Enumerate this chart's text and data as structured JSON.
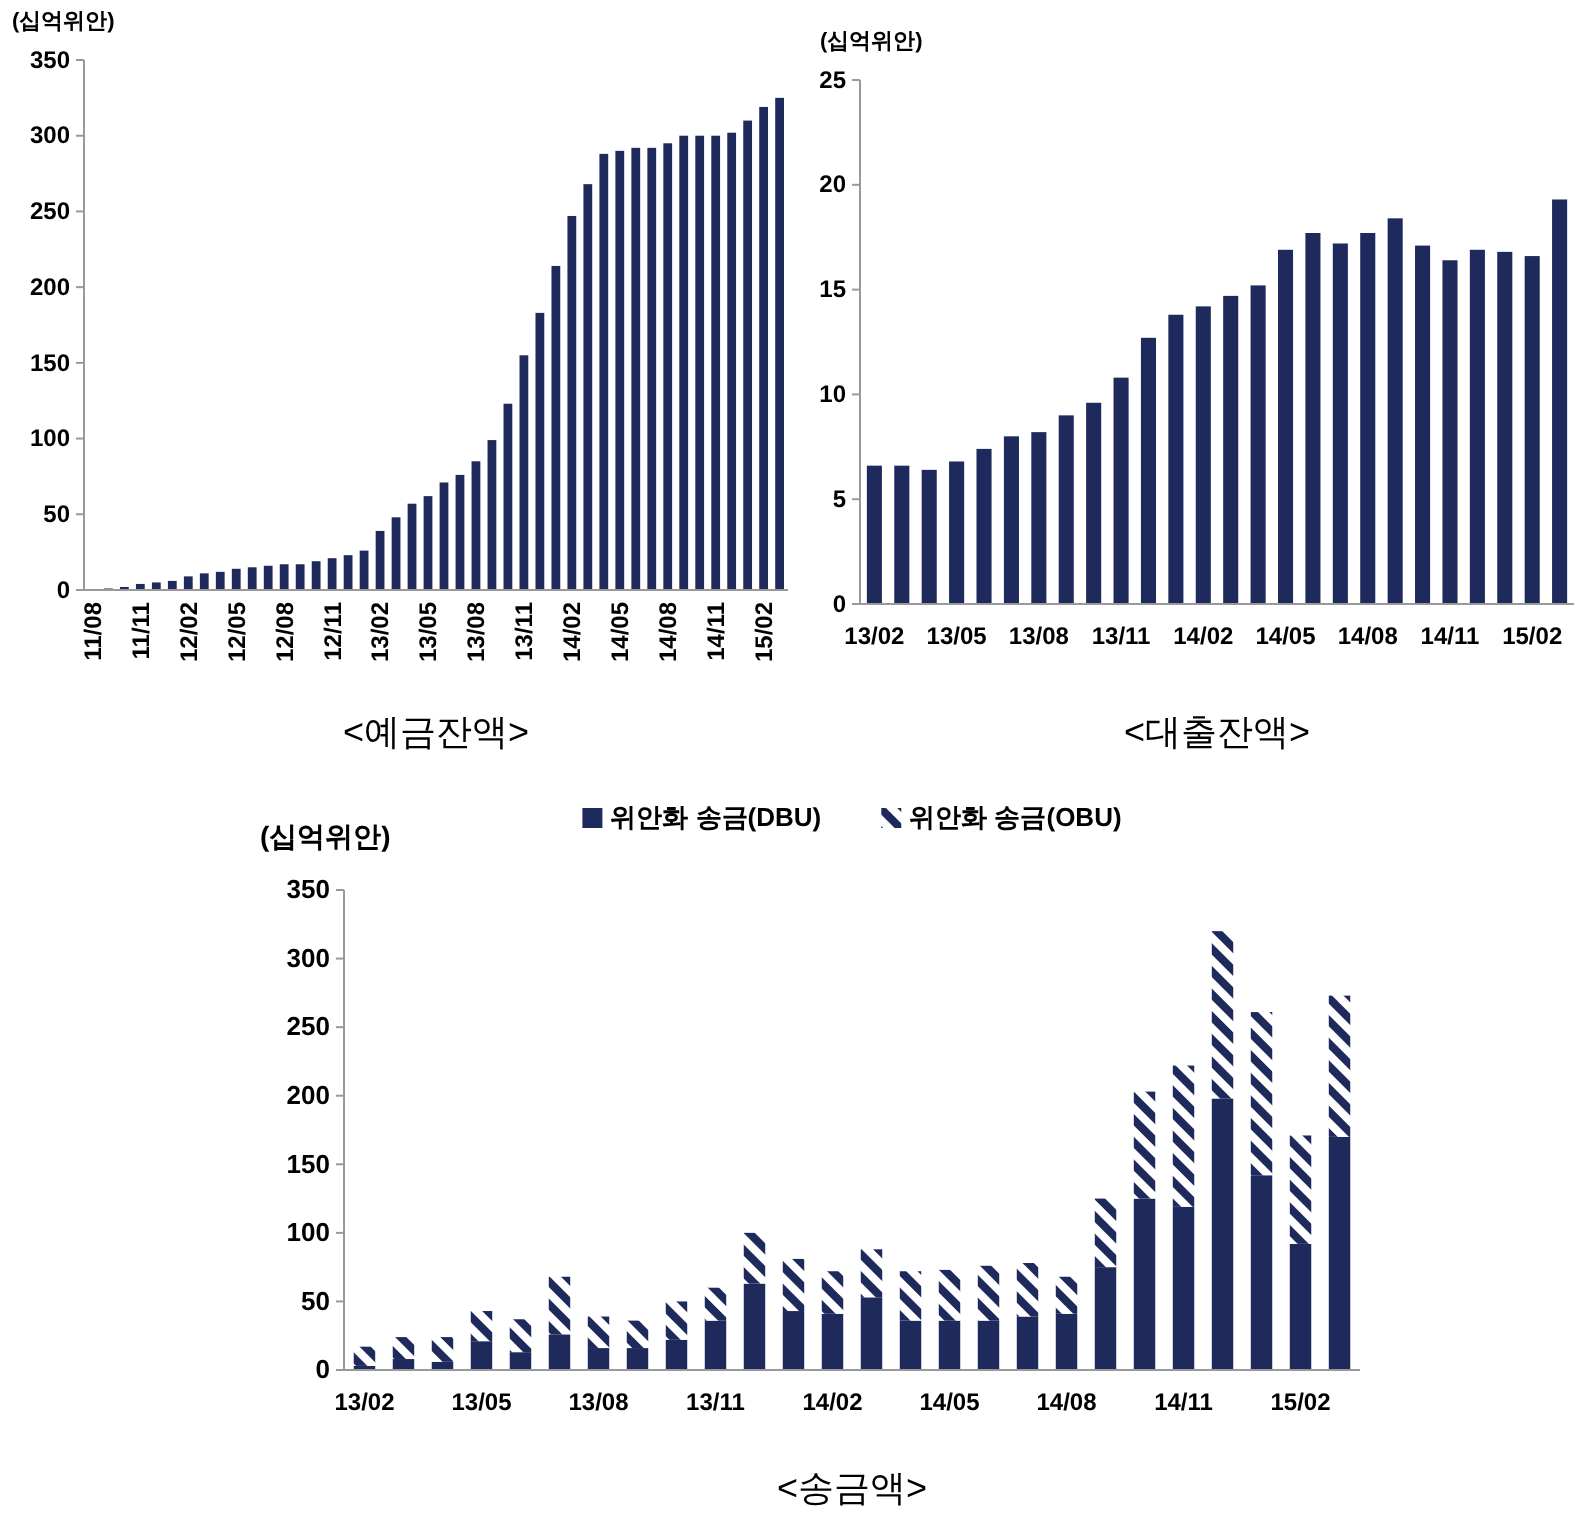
{
  "chart_data": [
    {
      "type": "bar",
      "title": "<예금잔액>",
      "ylabel": "(십억위안)",
      "categories": [
        "11/08",
        null,
        null,
        "11/11",
        null,
        null,
        "12/02",
        null,
        null,
        "12/05",
        null,
        null,
        "12/08",
        null,
        null,
        "12/11",
        null,
        null,
        "13/02",
        null,
        null,
        "13/05",
        null,
        null,
        "13/08",
        null,
        null,
        "13/11",
        null,
        null,
        "14/02",
        null,
        null,
        "14/05",
        null,
        null,
        "14/08",
        null,
        null,
        "14/11",
        null,
        null,
        "15/02",
        null
      ],
      "series": [
        {
          "color": "#1f2a5c",
          "values": [
            0,
            1,
            2,
            4,
            5,
            6,
            9,
            11,
            12,
            14,
            15,
            16,
            17,
            17,
            19,
            21,
            23,
            26,
            39,
            48,
            57,
            62,
            71,
            76,
            85,
            99,
            123,
            155,
            183,
            214,
            247,
            268,
            288,
            290,
            292,
            292,
            295,
            300,
            300,
            300,
            302,
            310,
            319,
            325
          ]
        }
      ],
      "ylim": [
        0,
        350
      ],
      "yticks": [
        0,
        50,
        100,
        150,
        200,
        250,
        300,
        350
      ],
      "grid": false,
      "legend": false
    },
    {
      "type": "bar",
      "title": "<대출잔액>",
      "ylabel": "(십억위안)",
      "categories": [
        "13/02",
        null,
        null,
        "13/05",
        null,
        null,
        "13/08",
        null,
        null,
        "13/11",
        null,
        null,
        "14/02",
        null,
        null,
        "14/05",
        null,
        null,
        "14/08",
        null,
        null,
        "14/11",
        null,
        null,
        "15/02",
        null
      ],
      "series": [
        {
          "color": "#1f2a5c",
          "values": [
            6.6,
            6.6,
            6.4,
            6.8,
            7.4,
            8.0,
            8.2,
            9.0,
            9.6,
            10.8,
            12.7,
            13.8,
            14.2,
            14.7,
            15.2,
            16.9,
            17.7,
            17.2,
            17.7,
            18.4,
            17.1,
            16.4,
            16.9,
            16.8,
            16.6,
            19.3
          ]
        }
      ],
      "ylim": [
        0,
        25
      ],
      "yticks": [
        0,
        5,
        10,
        15,
        20,
        25
      ],
      "grid": false,
      "legend": false
    },
    {
      "type": "bar",
      "stacked": true,
      "title": "<송금액>",
      "ylabel": "(십억위안)",
      "categories": [
        "13/02",
        null,
        null,
        "13/05",
        null,
        null,
        "13/08",
        null,
        null,
        "13/11",
        null,
        null,
        "14/02",
        null,
        null,
        "14/05",
        null,
        null,
        "14/08",
        null,
        null,
        "14/11",
        null,
        null,
        "15/02",
        null
      ],
      "series": [
        {
          "name": "위안화 송금(DBU)",
          "color": "#1f2a5c",
          "values": [
            3,
            8,
            6,
            21,
            13,
            26,
            16,
            16,
            22,
            36,
            63,
            43,
            41,
            53,
            36,
            36,
            36,
            39,
            41,
            75,
            125,
            119,
            198,
            142,
            92,
            170
          ]
        },
        {
          "name": "위안화 송금(OBU)",
          "color": "#1f2a5c",
          "values": [
            14,
            16,
            18,
            22,
            24,
            42,
            23,
            20,
            28,
            24,
            37,
            38,
            31,
            35,
            36,
            37,
            40,
            39,
            27,
            50,
            78,
            103,
            122,
            119,
            79,
            103
          ]
        }
      ],
      "ylim": [
        0,
        350
      ],
      "yticks": [
        0,
        50,
        100,
        150,
        200,
        250,
        300,
        350
      ],
      "grid": false,
      "legend": "top"
    }
  ]
}
